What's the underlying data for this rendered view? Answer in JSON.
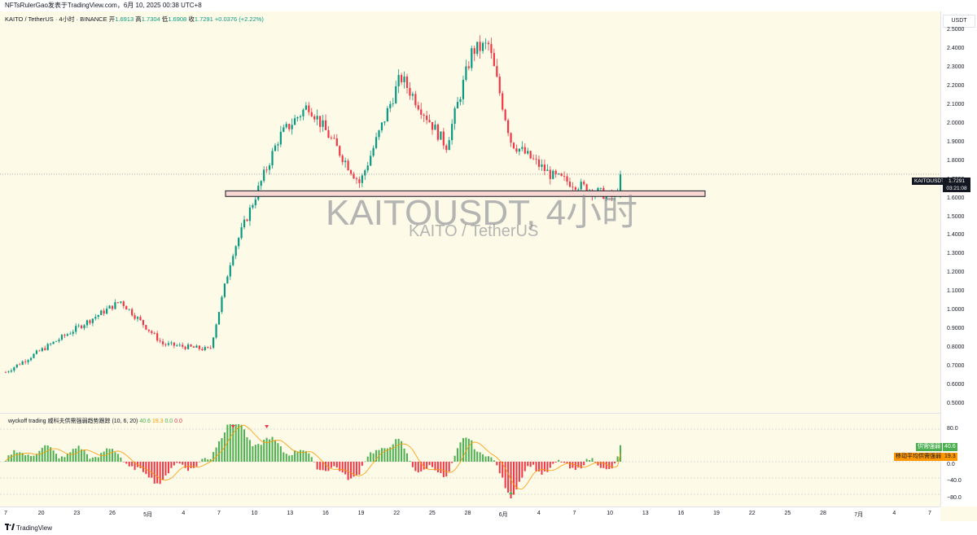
{
  "header": {
    "publisher": "NFTsRulerGao发表于TradingView.com，6月 10, 2025 00:38 UTC+8"
  },
  "legend": {
    "symbol": "KAITO / TetherUS · 4小时 · BINANCE",
    "open_label": "开",
    "open": "1.6913",
    "high_label": "高",
    "high": "1.7304",
    "low_label": "低",
    "low": "1.6908",
    "close_label": "收",
    "close": "1.7291",
    "change": "+0.0376 (+2.22%)"
  },
  "watermark": {
    "main": "KAITOUSDT, 4小时",
    "sub": "KAITO / TetherUS"
  },
  "currency": "USDT",
  "last_price_label": "KAITOUSDT",
  "last_price": "1.7291",
  "countdown": "03:21:08",
  "indicator": {
    "name": "wyckoff trading 威科夫供需强弱趋势跟踪 (10, 6, 20)",
    "v1": "40.6",
    "v2": "19.3",
    "v3": "0.0",
    "v4": "0.0",
    "label1": "供需强弱",
    "label1_value": "40.6",
    "label2": "移动平均供需强弱",
    "label2_value": "19.3",
    "levels": [
      "80.0",
      "0.0",
      "−40.0",
      "−80.0"
    ]
  },
  "footer": {
    "brand": "TradingView"
  },
  "colors": {
    "up": "#089981",
    "down": "#f23645",
    "zone_fill": "#f8d7d3",
    "background": "#fdfbe8",
    "osc_up": "#4caf50",
    "osc_down": "#f23645",
    "osc_ma": "#ff9800"
  },
  "chart_data": {
    "type": "candlestick",
    "timeframe": "4h",
    "x_ticks": [
      "7",
      "20",
      "23",
      "26",
      "5月",
      "4",
      "7",
      "10",
      "13",
      "16",
      "19",
      "22",
      "25",
      "28",
      "6月",
      "4",
      "7",
      "10",
      "13",
      "16",
      "19",
      "22",
      "25",
      "28",
      "7月",
      "4",
      "7"
    ],
    "y_ticks": [
      "2.5000",
      "2.4000",
      "2.3000",
      "2.2000",
      "2.1000",
      "2.0000",
      "1.9000",
      "1.8000",
      "1.7000",
      "1.6000",
      "1.5000",
      "1.4000",
      "1.3000",
      "1.2000",
      "1.1000",
      "1.0000",
      "0.9000",
      "0.8000",
      "0.7000",
      "0.6000",
      "0.5000"
    ],
    "ylim": [
      0.45,
      2.55
    ],
    "key_points": [
      {
        "t": "start",
        "price": 0.67
      },
      {
        "t": "late Apr",
        "price": 1.05
      },
      {
        "t": "5月 2",
        "price": 0.82
      },
      {
        "t": "5月 5",
        "price": 0.79
      },
      {
        "t": "5月 7",
        "price": 1.3
      },
      {
        "t": "5月 11",
        "price": 1.93
      },
      {
        "t": "5月 13",
        "price": 2.1
      },
      {
        "t": "5月 18",
        "price": 1.68
      },
      {
        "t": "5月 21",
        "price": 2.25
      },
      {
        "t": "5月 24",
        "price": 1.88
      },
      {
        "t": "5月 28",
        "price": 2.39
      },
      {
        "t": "5月 29",
        "price": 2.42
      },
      {
        "t": "6月 2",
        "price": 1.9
      },
      {
        "t": "6月 4",
        "price": 1.72
      },
      {
        "t": "6月 9",
        "price": 1.6
      },
      {
        "t": "6月 10",
        "price": 1.7291
      }
    ],
    "support_zone": [
      1.61,
      1.64
    ],
    "last": 1.7291,
    "oscillator": {
      "levels": [
        80,
        0,
        -40,
        -80
      ],
      "last": 40.6,
      "ma_last": 19.3
    }
  }
}
